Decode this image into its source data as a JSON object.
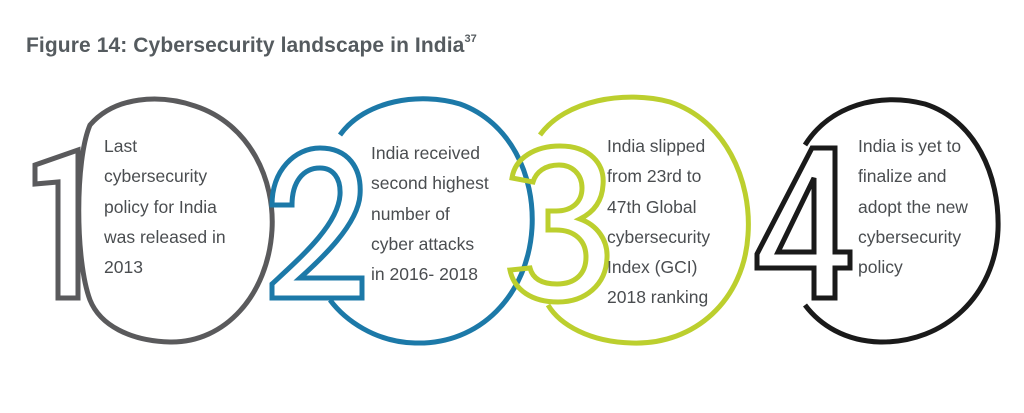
{
  "figure": {
    "title": "Figure 14: Cybersecurity landscape in India",
    "superscript": "37"
  },
  "items": [
    {
      "number": "1",
      "color": "#5a5a5c",
      "lines": [
        "Last",
        "cybersecurity",
        "policy for India",
        "was released in",
        "2013"
      ]
    },
    {
      "number": "2",
      "color": "#1c79a8",
      "lines": [
        "India received",
        "second highest",
        "number of",
        "cyber attacks",
        "in 2016- 2018"
      ]
    },
    {
      "number": "3",
      "color": "#bccf2e",
      "lines": [
        "India slipped",
        "from 23rd to",
        "47th Global",
        "cybersecurity",
        "Index (GCI)",
        "2018 ranking"
      ]
    },
    {
      "number": "4",
      "color": "#1a1a1a",
      "lines": [
        "India is yet to",
        "finalize and",
        "adopt the new",
        "cybersecurity",
        "policy"
      ]
    }
  ]
}
